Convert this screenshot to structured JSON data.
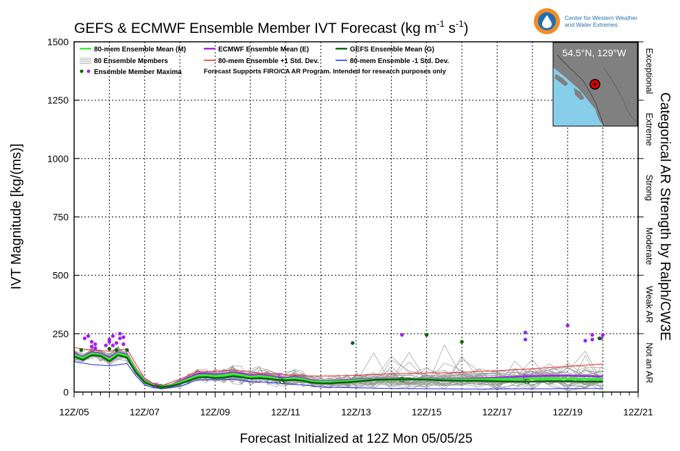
{
  "logo": {
    "line1": "Center for Western Weather",
    "line2": "and Water Extremes",
    "colors": {
      "ring": "#f28c28",
      "inner": "#1f6fb2",
      "text": "#1f6fb2"
    }
  },
  "inset_map": {
    "location_label": "54.5°N, 129°W",
    "ocean_color": "#87ceeb",
    "land_color": "#808080"
  },
  "chart_data": {
    "type": "line",
    "title_main": "GEFS & ECMWF Ensemble Member IVT Forecast (kg m",
    "title_sup1": "-1",
    "title_mid": " s",
    "title_sup2": "-1",
    "title_end": ")",
    "ylabel": "IVT Magnitude [kg/(ms)]",
    "xlabel": "Forecast Initialized at 12Z Mon 05/05/25",
    "right_label": "Categorical AR Strength by Ralph/CW3E",
    "xlim": [
      0,
      16
    ],
    "ylim": [
      0,
      1500
    ],
    "yticks": [
      0,
      250,
      500,
      750,
      1000,
      1250,
      1500
    ],
    "xtick_labels": [
      "12Z/05",
      "12Z/07",
      "12Z/09",
      "12Z/11",
      "12Z/13",
      "12Z/15",
      "12Z/17",
      "12Z/19",
      "12Z/21"
    ],
    "xtick_values": [
      0,
      2,
      4,
      6,
      8,
      10,
      12,
      14,
      16
    ],
    "grid": true,
    "legend_placement": "top-left",
    "legend": [
      {
        "label": "80-mem Ensemble Mean (M)",
        "color": "#33ee33",
        "kind": "line"
      },
      {
        "label": "ECMWF Ensemble Mean (E)",
        "color": "#a020f0",
        "kind": "line"
      },
      {
        "label": "GEFS Ensemble Mean (G)",
        "color": "#006400",
        "kind": "line"
      },
      {
        "label": "80 Ensemble Members",
        "color": "#999999",
        "kind": "multiline"
      },
      {
        "label": "80-mem Ensemble +1 Std. Dev.",
        "color": "#ee2222",
        "kind": "line"
      },
      {
        "label": "80-mem Ensemble -1 Std. Dev.",
        "color": "#2222ee",
        "kind": "line"
      },
      {
        "label": "Ensemble Member Maxima",
        "color": "#a020f0",
        "kind": "dots"
      }
    ],
    "legend_note": "Forecast Supports FIRO/CA AR Program. Intended for research purposes only",
    "categories": [
      {
        "label": "Not an AR",
        "from": 0,
        "to": 250
      },
      {
        "label": "Weak AR",
        "from": 250,
        "to": 500
      },
      {
        "label": "Moderate",
        "from": 500,
        "to": 750
      },
      {
        "label": "Strong",
        "from": 750,
        "to": 1000
      },
      {
        "label": "Extreme",
        "from": 1000,
        "to": 1250
      },
      {
        "label": "Exceptional",
        "from": 1250,
        "to": 1500
      }
    ],
    "series": [
      {
        "name": "80-mem Ensemble Mean (M)",
        "color": "#33ee33",
        "x": [
          0,
          0.25,
          0.5,
          0.75,
          1,
          1.25,
          1.5,
          1.75,
          2,
          2.25,
          2.5,
          2.75,
          3,
          3.25,
          3.5,
          3.75,
          4,
          4.25,
          4.5,
          4.75,
          5,
          5.25,
          5.5,
          5.75,
          6,
          6.25,
          6.5,
          6.75,
          7,
          7.25,
          7.5,
          7.75,
          8,
          8.5,
          9,
          9.5,
          10,
          10.5,
          11,
          11.5,
          12,
          12.5,
          13,
          13.5,
          14,
          14.5,
          15
        ],
        "values": [
          160,
          145,
          165,
          160,
          140,
          165,
          155,
          90,
          45,
          28,
          22,
          28,
          40,
          55,
          70,
          72,
          68,
          72,
          78,
          72,
          65,
          68,
          64,
          58,
          55,
          60,
          55,
          45,
          44,
          43,
          45,
          47,
          50,
          52,
          53,
          55,
          54,
          52,
          52,
          53,
          55,
          56,
          57,
          58,
          58,
          56,
          56
        ]
      },
      {
        "name": "ECMWF Ensemble Mean (E)",
        "color": "#a020f0",
        "x": [
          0,
          0.25,
          0.5,
          0.75,
          1,
          1.25,
          1.5,
          1.75,
          2,
          2.25,
          2.5,
          2.75,
          3,
          3.25,
          3.5,
          3.75,
          4,
          4.25,
          4.5,
          4.75,
          5,
          5.25,
          5.5,
          5.75,
          6,
          6.25,
          6.5,
          6.75,
          7,
          7.25,
          7.5,
          7.75,
          8,
          8.5,
          9,
          9.5,
          10,
          10.5,
          11,
          11.5,
          12,
          12.5,
          13,
          13.5,
          14,
          14.5,
          15
        ],
        "values": [
          168,
          150,
          172,
          165,
          148,
          170,
          160,
          95,
          48,
          30,
          23,
          30,
          45,
          62,
          78,
          80,
          75,
          78,
          85,
          80,
          72,
          75,
          70,
          64,
          60,
          66,
          60,
          50,
          48,
          47,
          49,
          52,
          54,
          56,
          56,
          58,
          57,
          56,
          56,
          58,
          62,
          65,
          68,
          70,
          70,
          68,
          67
        ]
      },
      {
        "name": "GEFS Ensemble Mean (G)",
        "color": "#006400",
        "x": [
          0,
          0.25,
          0.5,
          0.75,
          1,
          1.25,
          1.5,
          1.75,
          2,
          2.25,
          2.5,
          2.75,
          3,
          3.25,
          3.5,
          3.75,
          4,
          4.25,
          4.5,
          4.75,
          5,
          5.25,
          5.5,
          5.75,
          6,
          6.25,
          6.5,
          6.75,
          7,
          7.25,
          7.5,
          7.75,
          8,
          8.5,
          9,
          9.5,
          10,
          10.5,
          11,
          11.5,
          12,
          12.5,
          13,
          13.5,
          14,
          14.5,
          15
        ],
        "values": [
          152,
          138,
          158,
          155,
          132,
          158,
          148,
          85,
          42,
          26,
          21,
          26,
          35,
          48,
          62,
          64,
          60,
          62,
          68,
          64,
          58,
          60,
          57,
          52,
          50,
          52,
          48,
          40,
          38,
          37,
          40,
          42,
          45,
          52,
          54,
          55,
          53,
          50,
          48,
          48,
          46,
          45,
          45,
          46,
          46,
          45,
          45
        ]
      },
      {
        "name": "80-mem Ensemble +1 Std. Dev.",
        "color": "#ee2222",
        "x": [
          0,
          0.5,
          1,
          1.5,
          1.75,
          2,
          2.25,
          2.5,
          3,
          3.5,
          4,
          4.5,
          5,
          5.5,
          6,
          6.5,
          7,
          7.5,
          8,
          8.5,
          9,
          9.5,
          10,
          10.5,
          11,
          11.5,
          12,
          12.5,
          13,
          13.5,
          14,
          14.5,
          15
        ],
        "values": [
          190,
          180,
          175,
          185,
          120,
          60,
          36,
          28,
          55,
          88,
          88,
          95,
          85,
          78,
          75,
          70,
          68,
          70,
          72,
          75,
          78,
          80,
          82,
          82,
          84,
          88,
          92,
          95,
          100,
          105,
          110,
          115,
          120
        ]
      },
      {
        "name": "80-mem Ensemble -1 Std. Dev.",
        "color": "#2222ee",
        "x": [
          0,
          0.5,
          1,
          1.5,
          1.75,
          2,
          2.25,
          2.5,
          3,
          3.5,
          4,
          4.5,
          5,
          5.5,
          6,
          6.5,
          7,
          7.5,
          8,
          8.5,
          9,
          9.5,
          10,
          10.5,
          11,
          11.5,
          12,
          12.5,
          13,
          13.5,
          14,
          14.5,
          15
        ],
        "values": [
          130,
          118,
          112,
          122,
          70,
          30,
          18,
          15,
          25,
          52,
          52,
          55,
          45,
          42,
          36,
          30,
          22,
          20,
          18,
          17,
          15,
          15,
          14,
          14,
          13,
          13,
          13,
          14,
          14,
          14,
          15,
          15,
          15
        ]
      }
    ],
    "member_maxima": {
      "purple": [
        [
          0.3,
          230
        ],
        [
          0.4,
          240
        ],
        [
          0.5,
          215
        ],
        [
          0.5,
          195
        ],
        [
          0.6,
          205
        ],
        [
          0.6,
          188
        ],
        [
          0.9,
          200
        ],
        [
          1.0,
          215
        ],
        [
          1.0,
          225
        ],
        [
          1.1,
          240
        ],
        [
          1.1,
          200
        ],
        [
          1.2,
          210
        ],
        [
          1.3,
          230
        ],
        [
          1.3,
          250
        ],
        [
          1.4,
          235
        ],
        [
          1.4,
          205
        ],
        [
          9.3,
          245
        ],
        [
          12.8,
          255
        ],
        [
          12.8,
          225
        ],
        [
          14.0,
          285
        ],
        [
          14.5,
          220
        ],
        [
          14.7,
          225
        ],
        [
          14.7,
          245
        ],
        [
          14.95,
          230
        ],
        [
          15.0,
          245
        ]
      ],
      "green": [
        [
          0.2,
          180
        ],
        [
          1.0,
          185
        ],
        [
          1.2,
          180
        ],
        [
          1.5,
          180
        ],
        [
          7.9,
          210
        ],
        [
          10.0,
          245
        ],
        [
          11.0,
          215
        ],
        [
          14.9,
          230
        ]
      ]
    },
    "mean_markers": [
      {
        "letter": "E",
        "x": 2.35,
        "y": 30,
        "color": "#a020f0"
      },
      {
        "letter": "G",
        "x": 2.45,
        "y": 24,
        "color": "#006400"
      },
      {
        "letter": "E",
        "x": 5.85,
        "y": 70,
        "color": "#a020f0"
      },
      {
        "letter": "G",
        "x": 5.9,
        "y": 47,
        "color": "#006400"
      },
      {
        "letter": "G",
        "x": 9.3,
        "y": 55,
        "color": "#006400"
      },
      {
        "letter": "E",
        "x": 12.8,
        "y": 65,
        "color": "#a020f0"
      },
      {
        "letter": "G",
        "x": 12.85,
        "y": 46,
        "color": "#006400"
      }
    ]
  }
}
